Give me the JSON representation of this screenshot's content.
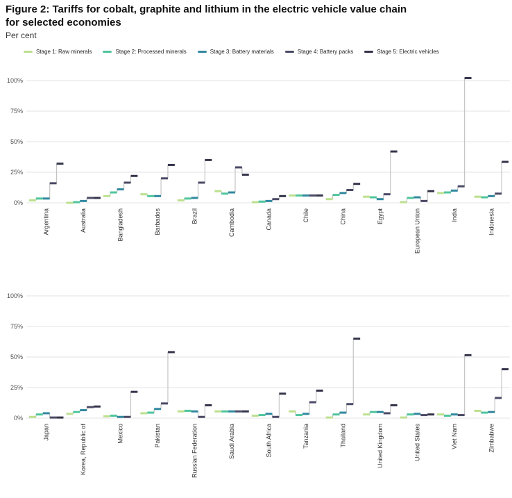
{
  "figure": {
    "title_line1": "Figure 2: Tariffs for cobalt, graphite and lithium in the electric vehicle value chain",
    "title_line2": "for selected economies",
    "subtitle": "Per cent"
  },
  "legend": {
    "items": [
      {
        "label": "Stage 1: Raw minerals",
        "color": "#bce08f"
      },
      {
        "label": "Stage 2: Processed minerals",
        "color": "#4fc59d"
      },
      {
        "label": "Stage 3: Battery materials",
        "color": "#31889f"
      },
      {
        "label": "Stage 4: Battery packs",
        "color": "#4a4a66"
      },
      {
        "label": "Stage 5: Electric vehicles",
        "color": "#34344a"
      }
    ]
  },
  "style_colors": {
    "gridline": "#e3e3e3",
    "connector": "#c4c4c4",
    "axis_text": "#4d4d4d"
  },
  "chart_data": [
    {
      "type": "line",
      "variant": "step-dash",
      "panel": "top",
      "ylim": [
        0,
        100
      ],
      "ytick_labels": [
        "0%",
        "25%",
        "50%",
        "75%",
        "100%"
      ],
      "yticks": [
        0,
        25,
        50,
        75,
        100
      ],
      "stages": [
        "Stage 1: Raw minerals",
        "Stage 2: Processed minerals",
        "Stage 3: Battery materials",
        "Stage 4: Battery packs",
        "Stage 5: Electric vehicles"
      ],
      "categories": [
        "Argentina",
        "Australia",
        "Bangladesh",
        "Barbados",
        "Brazil",
        "Cambodia",
        "Canada",
        "Chile",
        "China",
        "Egypt",
        "European Union",
        "India",
        "Indonesia"
      ],
      "values": [
        [
          2,
          3.5,
          3.5,
          16,
          32
        ],
        [
          0,
          0.5,
          1.5,
          4,
          4
        ],
        [
          5.5,
          8.5,
          11,
          16.5,
          22
        ],
        [
          7,
          5.5,
          5.5,
          20,
          31
        ],
        [
          2,
          3.5,
          4,
          16.5,
          35
        ],
        [
          9.5,
          7.5,
          8.5,
          29,
          23
        ],
        [
          0.5,
          1,
          1.5,
          3,
          5.5
        ],
        [
          6,
          6,
          6,
          6,
          6
        ],
        [
          3,
          6.5,
          8,
          10.5,
          15.5
        ],
        [
          5,
          4.5,
          3,
          7,
          42
        ],
        [
          0.5,
          4,
          4.5,
          1.5,
          9.5
        ],
        [
          8,
          8.5,
          10,
          13.5,
          102
        ],
        [
          5,
          4.5,
          5.5,
          7.5,
          33.5
        ]
      ]
    },
    {
      "type": "line",
      "variant": "step-dash",
      "panel": "bottom",
      "ylim": [
        0,
        100
      ],
      "ytick_labels": [
        "0%",
        "25%",
        "50%",
        "75%",
        "100%"
      ],
      "yticks": [
        0,
        25,
        50,
        75,
        100
      ],
      "stages": [
        "Stage 1: Raw minerals",
        "Stage 2: Processed minerals",
        "Stage 3: Battery materials",
        "Stage 4: Battery packs",
        "Stage 5: Electric vehicles"
      ],
      "categories": [
        "Japan",
        "Korea, Republic of",
        "Mexico",
        "Pakistan",
        "Russian Federation",
        "Saudi Arabia",
        "South Africa",
        "Tanzania",
        "Thailand",
        "United Kingdom",
        "United States",
        "Viet Nam",
        "Zimbabwe"
      ],
      "values": [
        [
          1,
          3,
          4,
          0.5,
          0.5
        ],
        [
          3.5,
          5,
          6.5,
          9,
          9.5
        ],
        [
          1.5,
          2,
          1,
          1,
          21.5
        ],
        [
          4,
          4.5,
          7.5,
          12,
          54
        ],
        [
          5.5,
          6,
          5.5,
          1,
          10.5
        ],
        [
          5.5,
          5.5,
          5.5,
          5.5,
          5.5
        ],
        [
          2,
          2.5,
          3.5,
          1,
          20
        ],
        [
          5.5,
          2.5,
          3.5,
          13,
          22.5
        ],
        [
          0.5,
          3,
          4.5,
          11.5,
          65
        ],
        [
          3,
          5,
          5,
          4,
          10.5
        ],
        [
          0.5,
          3,
          3.5,
          2.5,
          3
        ],
        [
          3,
          2,
          3,
          2.5,
          51.5
        ],
        [
          6,
          4.5,
          5,
          16.5,
          40
        ]
      ]
    }
  ]
}
